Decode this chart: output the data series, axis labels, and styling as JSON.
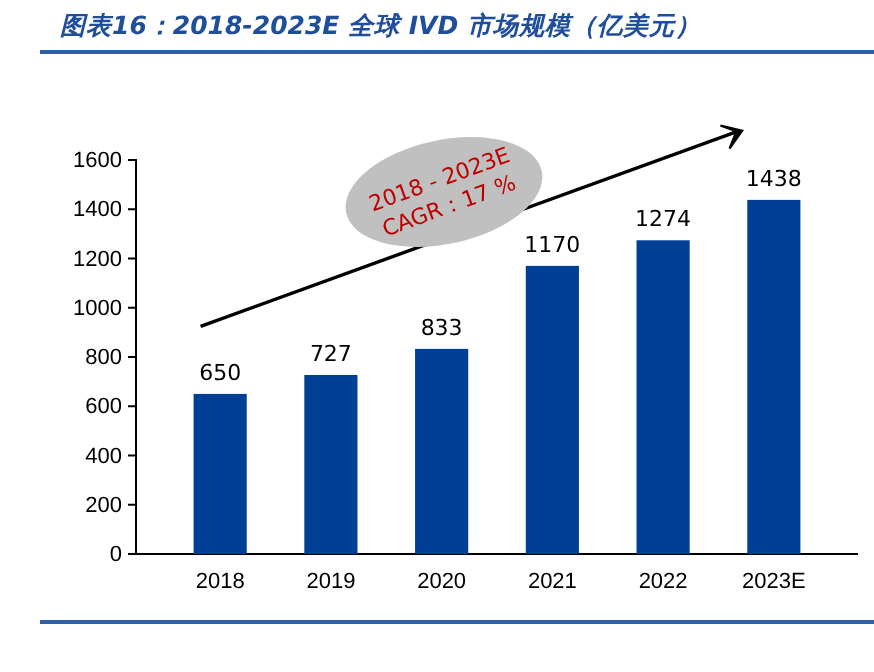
{
  "chart_data": {
    "type": "bar",
    "title": "图表16：2018-2023E 全球 IVD 市场规模（亿美元）",
    "categories": [
      "2018",
      "2019",
      "2020",
      "2021",
      "2022",
      "2023E"
    ],
    "values": [
      650,
      727,
      833,
      1170,
      1274,
      1438
    ],
    "color": "#003f96",
    "ylim": [
      0,
      1600
    ],
    "yticks": [
      0,
      200,
      400,
      600,
      800,
      1000,
      1200,
      1400,
      1600
    ],
    "data_labels": true,
    "grid": false,
    "annotations": [
      "2018 - 2023E",
      "CAGR：17 %"
    ]
  }
}
